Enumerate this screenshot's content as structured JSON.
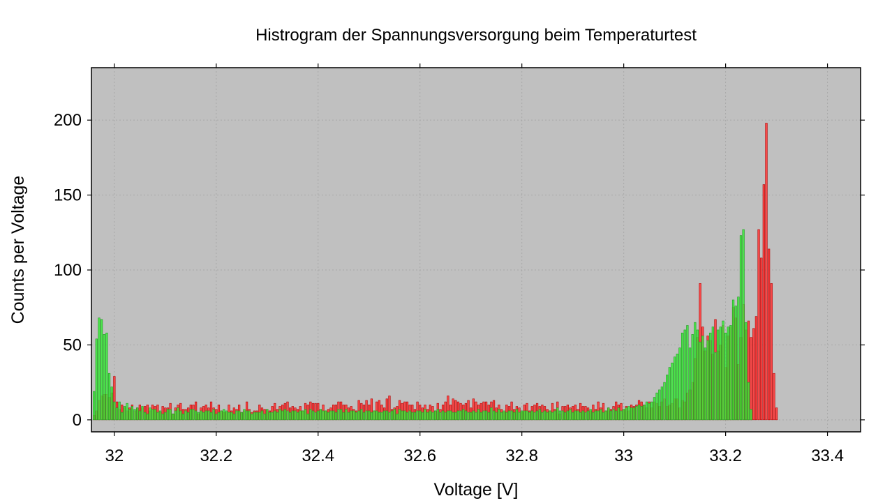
{
  "chart_data": {
    "type": "bar",
    "title": "Histrogram der Spannungsversorgung beim Temperaturtest",
    "xlabel": "Voltage [V]",
    "ylabel": "Counts per Voltage",
    "xlim": [
      31.955,
      33.465
    ],
    "ylim": [
      -8,
      235
    ],
    "xticks": [
      32,
      32.2,
      32.4,
      32.6,
      32.8,
      33,
      33.2,
      33.4
    ],
    "xtick_labels": [
      "32",
      "32.2",
      "32.4",
      "32.6",
      "32.8",
      "33",
      "33.2",
      "33.4"
    ],
    "yticks": [
      0,
      50,
      100,
      150,
      200
    ],
    "ytick_labels": [
      "0",
      "50",
      "100",
      "150",
      "200"
    ],
    "grid": true,
    "legend": "none",
    "background_color": "#c0c0c0",
    "bin_width": 0.005,
    "x_start": 31.96,
    "series": [
      {
        "color": "#ff3b3b",
        "values": [
          3,
          6,
          13,
          16,
          17,
          17,
          15,
          18,
          29,
          12,
          7,
          10,
          8,
          6,
          8,
          10,
          6,
          8,
          10,
          8,
          9,
          10,
          6,
          10,
          9,
          10,
          5,
          9,
          8,
          8,
          11,
          4,
          8,
          10,
          11,
          7,
          7,
          8,
          10,
          10,
          12,
          4,
          8,
          9,
          10,
          8,
          12,
          8,
          7,
          10,
          6,
          5,
          5,
          10,
          6,
          8,
          7,
          10,
          5,
          6,
          12,
          7,
          5,
          6,
          6,
          10,
          8,
          7,
          7,
          6,
          9,
          11,
          7,
          9,
          10,
          11,
          12,
          8,
          9,
          8,
          7,
          9,
          6,
          11,
          10,
          12,
          11,
          11,
          11,
          7,
          10,
          6,
          7,
          8,
          10,
          10,
          12,
          12,
          10,
          10,
          8,
          9,
          7,
          6,
          13,
          11,
          10,
          13,
          10,
          14,
          6,
          12,
          13,
          10,
          8,
          14,
          16,
          7,
          8,
          9,
          13,
          11,
          12,
          12,
          10,
          10,
          7,
          12,
          10,
          8,
          10,
          7,
          10,
          9,
          6,
          11,
          7,
          10,
          12,
          16,
          10,
          14,
          13,
          12,
          11,
          10,
          11,
          13,
          8,
          14,
          12,
          10,
          11,
          12,
          12,
          10,
          12,
          13,
          8,
          10,
          7,
          5,
          10,
          9,
          12,
          7,
          9,
          8,
          5,
          10,
          11,
          6,
          9,
          10,
          11,
          9,
          10,
          9,
          7,
          6,
          11,
          7,
          12,
          4,
          9,
          9,
          10,
          8,
          9,
          10,
          7,
          11,
          9,
          9,
          8,
          6,
          10,
          7,
          12,
          8,
          11,
          6,
          8,
          7,
          9,
          12,
          10,
          11,
          7,
          9,
          6,
          10,
          9,
          10,
          13,
          12,
          10,
          8,
          12,
          8,
          12,
          11,
          9,
          12,
          14,
          9,
          10,
          11,
          14,
          14,
          8,
          13,
          12,
          18,
          20,
          25,
          41,
          55,
          91,
          62,
          46,
          56,
          53,
          44,
          67,
          46,
          50,
          63,
          35,
          56,
          62,
          75,
          68,
          37,
          55,
          77,
          60,
          66,
          55,
          61,
          69,
          127,
          108,
          157,
          198,
          114,
          91,
          31,
          8
        ]
      },
      {
        "color": "#33ee33",
        "values": [
          19,
          54,
          68,
          67,
          57,
          58,
          31,
          22,
          12,
          8,
          12,
          5,
          9,
          11,
          7,
          9,
          7,
          8,
          6,
          9,
          5,
          4,
          8,
          7,
          7,
          5,
          6,
          4,
          5,
          7,
          7,
          4,
          6,
          8,
          6,
          4,
          6,
          5,
          7,
          7,
          6,
          5,
          6,
          5,
          6,
          6,
          5,
          7,
          4,
          5,
          6,
          7,
          6,
          5,
          5,
          4,
          6,
          6,
          5,
          7,
          6,
          6,
          4,
          5,
          5,
          5,
          6,
          4,
          7,
          5,
          5,
          6,
          5,
          7,
          6,
          7,
          6,
          5,
          6,
          6,
          5,
          6,
          6,
          7,
          4,
          7,
          6,
          5,
          6,
          7,
          6,
          6,
          5,
          6,
          6,
          5,
          7,
          7,
          5,
          7,
          5,
          6,
          6,
          5,
          6,
          7,
          5,
          6,
          6,
          5,
          6,
          6,
          5,
          5,
          6,
          6,
          5,
          6,
          7,
          4,
          7,
          6,
          6,
          5,
          6,
          5,
          5,
          6,
          6,
          5,
          7,
          5,
          6,
          5,
          6,
          7,
          5,
          6,
          5,
          6,
          6,
          5,
          5,
          6,
          6,
          7,
          6,
          5,
          5,
          6,
          5,
          7,
          5,
          6,
          6,
          5,
          8,
          6,
          5,
          7,
          5,
          6,
          5,
          6,
          6,
          5,
          7,
          5,
          6,
          6,
          6,
          5,
          6,
          5,
          6,
          7,
          5,
          6,
          5,
          6,
          5,
          6,
          8,
          6,
          6,
          5,
          6,
          7,
          5,
          6,
          6,
          5,
          6,
          5,
          6,
          7,
          5,
          6,
          6,
          7,
          5,
          6,
          8,
          6,
          7,
          6,
          8,
          6,
          7,
          8,
          9,
          8,
          8,
          9,
          10,
          9,
          10,
          12,
          11,
          12,
          15,
          18,
          20,
          22,
          25,
          30,
          35,
          38,
          42,
          44,
          48,
          58,
          60,
          63,
          48,
          57,
          65,
          60,
          52,
          56,
          48,
          53,
          58,
          62,
          45,
          60,
          62,
          66,
          58,
          62,
          63,
          80,
          76,
          82,
          123,
          127,
          65,
          25,
          7
        ]
      }
    ]
  }
}
